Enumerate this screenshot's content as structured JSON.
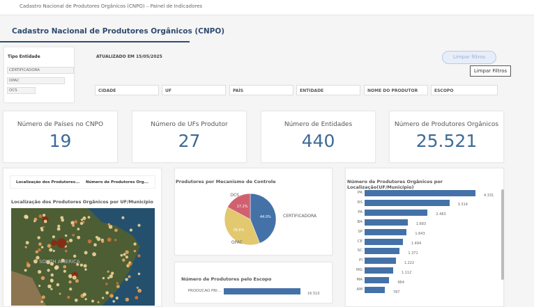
{
  "topbar": {
    "breadcrumb": "Cadastro Nacional de Produtores Orgânicos (CNPO) – Painel de Indicadores"
  },
  "header": {
    "title": "Cadastro Nacional de Produtores Orgânicos (CNPO)"
  },
  "filters": {
    "tipo_entidade": {
      "label": "Tipo Entidade",
      "options": [
        "CERTIFICADORA",
        "OPAC",
        "OCS"
      ]
    },
    "updated": "ATUALIZADO EM 15/05/2025",
    "clear_button": "Limpar filtros",
    "clear_tooltip": "Limpar Filtros",
    "fields": [
      "CIDADE",
      "UF",
      "PAÍS",
      "ENTIDADE",
      "NOME DO PRODUTOR",
      "ESCOPO"
    ]
  },
  "kpis": [
    {
      "label": "Número de Países no CNPO",
      "value": "19"
    },
    {
      "label": "Número de UFs Produtor",
      "value": "27"
    },
    {
      "label": "Número de Entidades",
      "value": "440"
    },
    {
      "label": "Número de Produtores Orgânicos",
      "value": "25.521"
    }
  ],
  "map_panel": {
    "tabs": [
      "Localização dos Produtores...",
      "Número de Produtores Org..."
    ],
    "title": "Localização dos Produtores Orgânicos por UF/Município",
    "map_label": "SOUTH AMERICA"
  },
  "chart_data": [
    {
      "type": "pie",
      "title": "Produtores por Mecanismo de Controle",
      "categories": [
        "CERTIFICADORA",
        "OPAC",
        "OCS"
      ],
      "values": [
        44.0,
        38.8,
        17.2
      ],
      "labels": [
        "44.0%",
        "38.8%",
        "17.2%"
      ],
      "colors": [
        "#4472a8",
        "#e2c86e",
        "#d06070"
      ]
    },
    {
      "type": "bar",
      "title": "Número de Produtores pelo Escopo",
      "categories": [
        "PRODUCAO PRI..."
      ],
      "values": [
        16510
      ],
      "labels": [
        "16.510"
      ]
    },
    {
      "type": "bar",
      "title": "Número de Produtores Orgânicos por Localização(UF/Município)",
      "categories": [
        "PR",
        "RS",
        "PA",
        "BA",
        "SP",
        "CE",
        "SC",
        "PI",
        "MG",
        "MA",
        "AM"
      ],
      "values": [
        4331,
        3314,
        2463,
        1683,
        1643,
        1494,
        1371,
        1222,
        1112,
        964,
        787
      ],
      "labels": [
        "4.331",
        "3.314",
        "2.463",
        "1.683",
        "1.643",
        "1.494",
        "1.371",
        "1.222",
        "1.112",
        "964",
        "787"
      ]
    }
  ]
}
